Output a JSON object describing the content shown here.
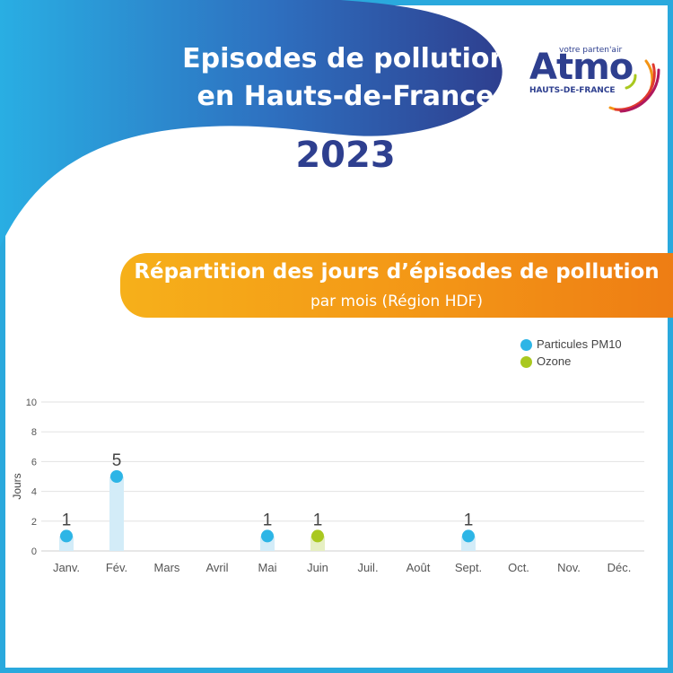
{
  "header": {
    "title_line1": "Episodes de pollution",
    "title_line2": "en Hauts-de-France",
    "year": "2023"
  },
  "logo": {
    "tagline": "votre parten'air",
    "name": "Atmo",
    "region": "HAUTS-DE-FRANCE",
    "icon": "air-arcs-icon"
  },
  "banner": {
    "title": "Répartition des jours d’épisodes de pollution",
    "subtitle": "par mois (Région HDF)"
  },
  "colors": {
    "pm10": "#2db5e6",
    "ozone": "#a9c81f",
    "pm10_bar": "#d3ecf8",
    "ozone_bar": "#e6efc2",
    "navy": "#2e3f8f",
    "orange": "#f39416"
  },
  "chart_data": {
    "type": "bar",
    "title": "",
    "xlabel": "",
    "ylabel": "Jours",
    "ylim": [
      0,
      10
    ],
    "yticks": [
      0,
      2,
      4,
      6,
      8,
      10
    ],
    "grid": true,
    "legend_position": "top-right",
    "categories": [
      "Janv.",
      "Fév.",
      "Mars",
      "Avril",
      "Mai",
      "Juin",
      "Juil.",
      "Août",
      "Sept.",
      "Oct.",
      "Nov.",
      "Déc."
    ],
    "series": [
      {
        "name": "Particules PM10",
        "values": [
          1,
          5,
          0,
          0,
          1,
          0,
          0,
          0,
          1,
          0,
          0,
          0
        ]
      },
      {
        "name": "Ozone",
        "values": [
          0,
          0,
          0,
          0,
          0,
          1,
          0,
          0,
          0,
          0,
          0,
          0
        ]
      }
    ]
  }
}
